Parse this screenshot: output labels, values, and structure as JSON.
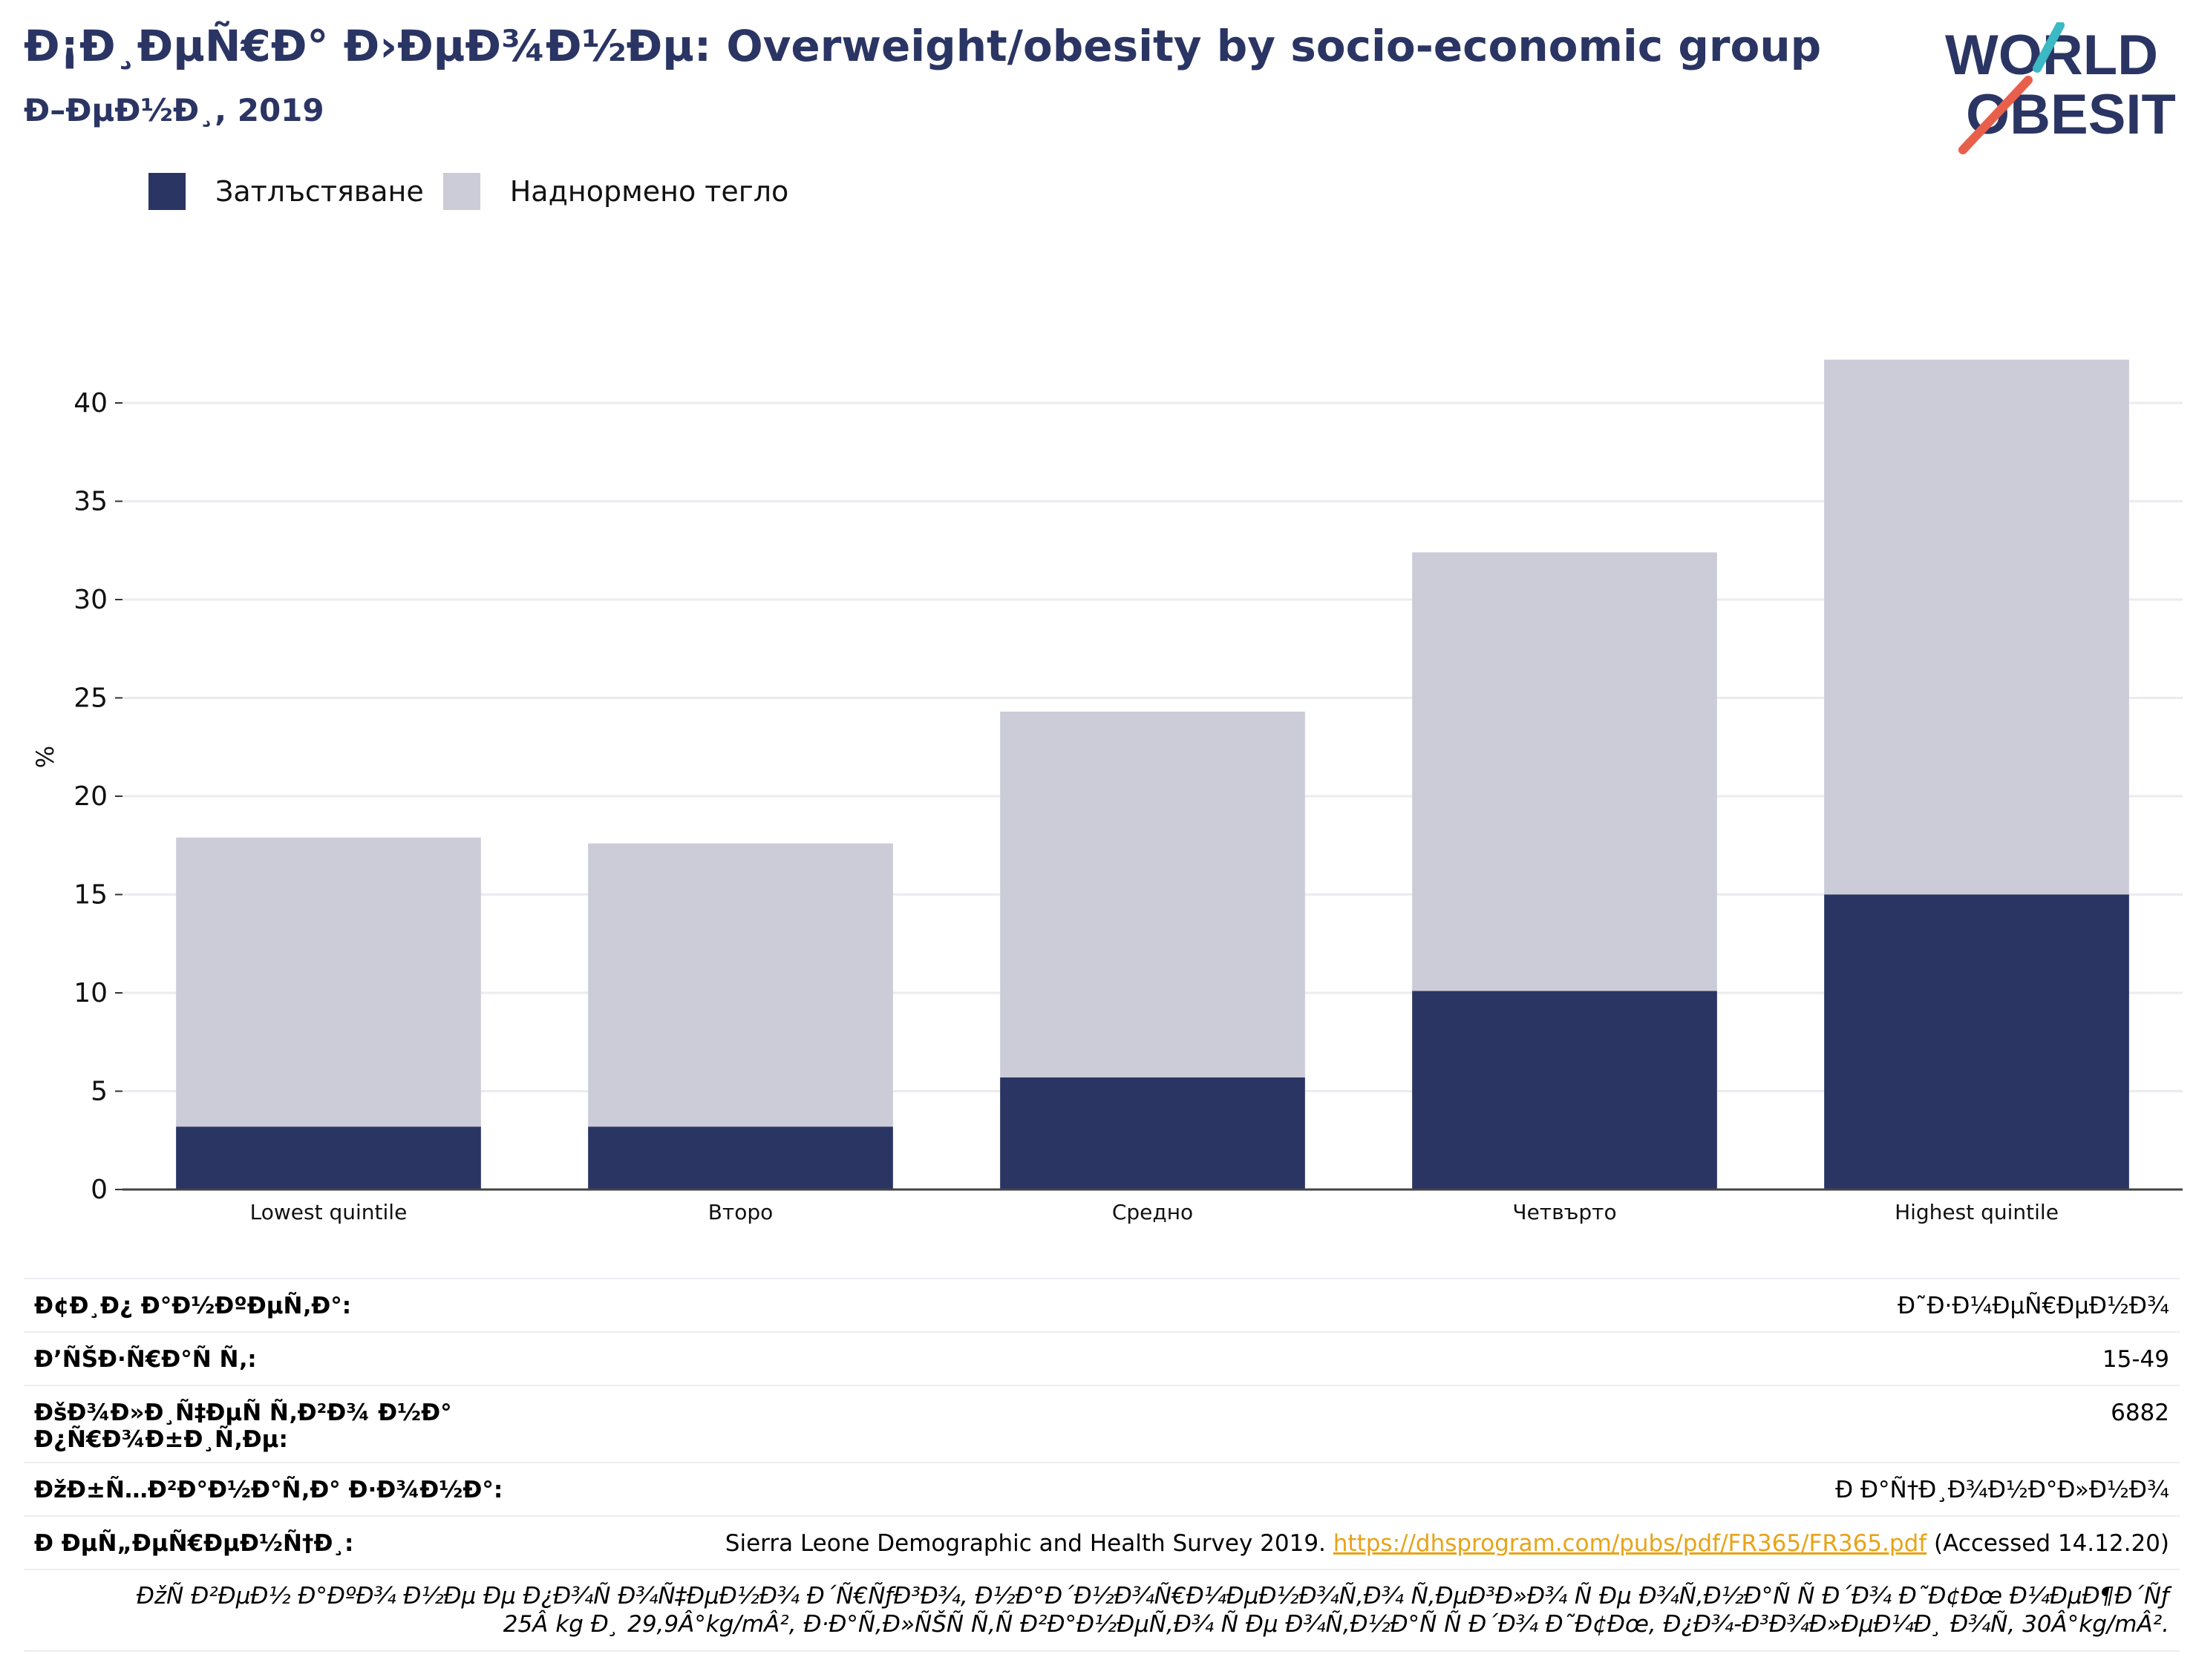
{
  "header": {
    "title": "Ð¡Ð¸ÐµÑ€Ð° Ð›ÐµÐ¾Ð½Ðµ: Overweight/obesity by socio-economic group",
    "subtitle": "Ð–ÐµÐ½Ð¸, 2019"
  },
  "logo": {
    "line1": "WORLD",
    "line2": "OBESITY",
    "colors": {
      "text": "#2b3564",
      "slash_teal": "#3bb9c4",
      "slash_red": "#e8604c"
    }
  },
  "colors": {
    "obesity": "#2b3564",
    "overweight": "#cbccd8",
    "title": "#2b3564",
    "link": "#e8a317"
  },
  "chart_data": {
    "type": "bar",
    "stacked": true,
    "categories": [
      "Lowest quintile",
      "Второ",
      "Средно",
      "Четвърто",
      "Highest quintile"
    ],
    "series": [
      {
        "name": "Затлъстяване",
        "values": [
          3.2,
          3.2,
          5.7,
          10.1,
          15.0
        ]
      },
      {
        "name": "Наднормено тегло",
        "values": [
          14.7,
          14.4,
          18.6,
          22.3,
          27.2
        ]
      }
    ],
    "xlabel": "",
    "ylabel": "%",
    "ylim": [
      0,
      43
    ],
    "yticks": [
      0,
      5,
      10,
      15,
      20,
      25,
      30,
      35,
      40
    ],
    "grid": true,
    "legend": "top-left"
  },
  "info": {
    "rows": [
      {
        "key": "Ð¢Ð¸Ð¿ Ð°Ð½ÐºÐµÑ‚Ð°:",
        "value": "Ð˜Ð·Ð¼ÐµÑ€ÐµÐ½Ð¾"
      },
      {
        "key": "Ð’ÑŠÐ·Ñ€Ð°Ñ Ñ‚:",
        "value": "15-49"
      },
      {
        "key": "ÐšÐ¾Ð»Ð¸Ñ‡ÐµÑ Ñ‚Ð²Ð¾ Ð½Ð° Ð¿Ñ€Ð¾Ð±Ð¸Ñ‚Ðµ:",
        "value": "6882"
      },
      {
        "key": "ÐžÐ±Ñ…Ð²Ð°Ð½Ð°Ñ‚Ð° Ð·Ð¾Ð½Ð°:",
        "value": "Ð Ð°Ñ†Ð¸Ð¾Ð½Ð°Ð»Ð½Ð¾"
      }
    ],
    "reference": {
      "key": "Ð ÐµÑ„ÐµÑ€ÐµÐ½Ñ†Ð¸:",
      "prefix": "Sierra Leone Demographic and Health Survey 2019.",
      "link": "https://dhsprogram.com/pubs/pdf/FR365/FR365.pdf",
      "suffix": "(Accessed 14.12.20)"
    },
    "note_line1": "ÐžÑ Ð²ÐµÐ½ Ð°ÐºÐ¾ Ð½Ðµ Ðµ Ð¿Ð¾Ñ Ð¾Ñ‡ÐµÐ½Ð¾ Ð´Ñ€ÑƒÐ³Ð¾, Ð½Ð°Ð´Ð½Ð¾Ñ€Ð¼ÐµÐ½Ð¾Ñ‚Ð¾ Ñ‚ÐµÐ³Ð»Ð¾ Ñ Ðµ Ð¾Ñ‚Ð½Ð°Ñ Ñ  Ð´Ð¾ Ð˜Ð¢Ðœ Ð¼ÐµÐ¶Ð´Ñƒ",
    "note_line2": "25Â kg Ð¸ 29,9Â°kg/mÂ², Ð·Ð°Ñ‚Ð»ÑŠÑ Ñ‚Ñ Ð²Ð°Ð½ÐµÑ‚Ð¾ Ñ Ðµ Ð¾Ñ‚Ð½Ð°Ñ Ñ  Ð´Ð¾ Ð˜Ð¢Ðœ, Ð¿Ð¾-Ð³Ð¾Ð»ÐµÐ¼Ð¸ Ð¾Ñ‚ 30Â°kg/mÂ²."
  }
}
